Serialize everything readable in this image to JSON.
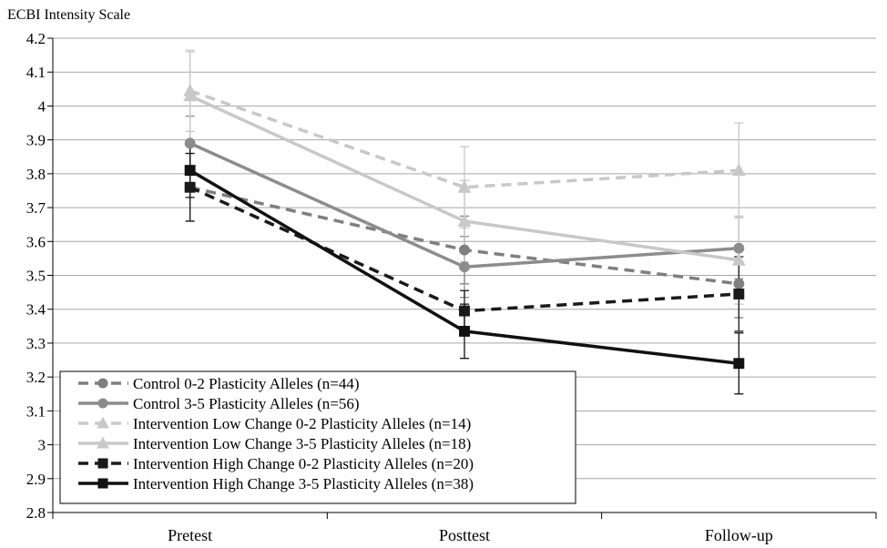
{
  "chart_data": {
    "type": "line",
    "ylabel": "ECBI Intensity Scale",
    "categories": [
      "Pretest",
      "Posttest",
      "Follow-up"
    ],
    "ylim": [
      2.8,
      4.2
    ],
    "yticks": [
      "2.8",
      "2.9",
      "3",
      "3.1",
      "3.2",
      "3.3",
      "3.4",
      "3.5",
      "3.6",
      "3.7",
      "3.8",
      "3.9",
      "4",
      "4.1",
      "4.2"
    ],
    "grid": true,
    "legend_position": "bottom-left",
    "series": [
      {
        "name": "Control 0-2 Plasticity Alleles  (n=44)",
        "values": [
          3.76,
          3.575,
          3.475
        ],
        "errors": [
          0.1,
          0.1,
          0.1
        ],
        "color": "#7f7f7f",
        "dashed": true,
        "marker": "circle"
      },
      {
        "name": "Control 3-5 Plasticity Alleles  (n=56)",
        "values": [
          3.89,
          3.525,
          3.58
        ],
        "errors": [
          0.08,
          0.09,
          0.09
        ],
        "color": "#8c8c8c",
        "dashed": false,
        "marker": "circle"
      },
      {
        "name": "Intervention Low Change  0-2 Plasticity Alleles (n=14)",
        "values": [
          4.045,
          3.76,
          3.81
        ],
        "errors": [
          0.12,
          0.12,
          0.14
        ],
        "color": "#c8c8c8",
        "dashed": true,
        "marker": "triangle"
      },
      {
        "name": "Intervention Low Change  3-5 Plasticity Alleles (n=18)",
        "values": [
          4.03,
          3.66,
          3.545
        ],
        "errors": [
          0.13,
          0.12,
          0.13
        ],
        "color": "#c8c8c8",
        "dashed": false,
        "marker": "triangle"
      },
      {
        "name": "Intervention High Change 0-2 Plasticity Alleles (n=20)",
        "values": [
          3.76,
          3.395,
          3.445
        ],
        "errors": [
          0.1,
          0.06,
          0.11
        ],
        "color": "#1a1a1a",
        "dashed": true,
        "marker": "square"
      },
      {
        "name": "Intervention High Change 3-5 Plasticity Alleles (n=38)",
        "values": [
          3.81,
          3.335,
          3.24
        ],
        "errors": [
          0.08,
          0.08,
          0.09
        ],
        "color": "#111111",
        "dashed": false,
        "marker": "square"
      }
    ]
  }
}
